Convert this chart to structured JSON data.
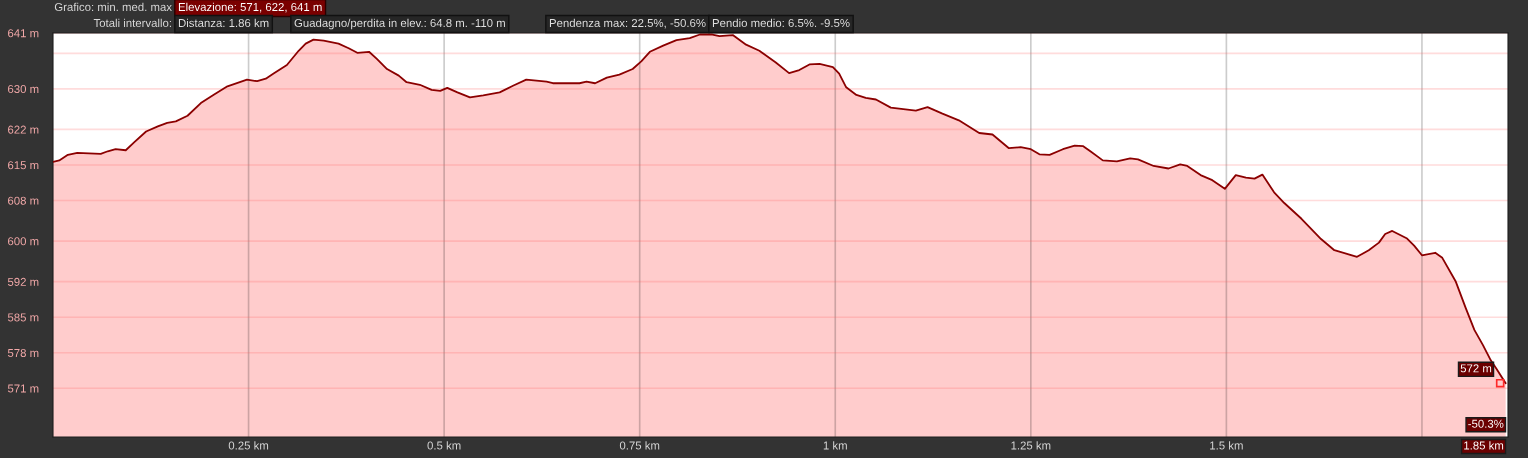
{
  "chart_data": {
    "type": "area",
    "annotations": [
      "Grafico: min. med. max",
      "Elevazione: 571, 622, 641 m",
      "Totali intervallo:",
      "Distanza: 1.86 km",
      "Guadagno/perdita in elev.: 64.8 m. -110 m",
      "Pendenza max: 22.5%, -50.6%",
      "Pendio medio: 6.5%. -9.5%",
      {
        "text": "572 m",
        "x": 1.85,
        "y": 572
      },
      "-50.3%",
      "1.85 km"
    ],
    "x": [
      0,
      0.008,
      0.019,
      0.031,
      0.061,
      0.07,
      0.08,
      0.093,
      0.104,
      0.119,
      0.134,
      0.146,
      0.157,
      0.172,
      0.189,
      0.206,
      0.223,
      0.248,
      0.261,
      0.272,
      0.282,
      0.299,
      0.314,
      0.323,
      0.333,
      0.346,
      0.365,
      0.378,
      0.389,
      0.404,
      0.414,
      0.427,
      0.442,
      0.452,
      0.469,
      0.484,
      0.495,
      0.504,
      0.517,
      0.533,
      0.55,
      0.571,
      0.588,
      0.605,
      0.631,
      0.639,
      0.673,
      0.682,
      0.693,
      0.708,
      0.724,
      0.741,
      0.752,
      0.763,
      0.78,
      0.797,
      0.814,
      0.827,
      0.843,
      0.852,
      0.869,
      0.886,
      0.903,
      0.924,
      0.941,
      0.954,
      0.967,
      0.98,
      0.997,
      1.005,
      1.014,
      1.027,
      1.039,
      1.052,
      1.071,
      1.103,
      1.118,
      1.137,
      1.158,
      1.184,
      1.201,
      1.222,
      1.237,
      1.25,
      1.261,
      1.274,
      1.291,
      1.306,
      1.317,
      1.327,
      1.342,
      1.36,
      1.377,
      1.387,
      1.407,
      1.426,
      1.441,
      1.45,
      1.467,
      1.482,
      1.498,
      1.512,
      1.525,
      1.536,
      1.546,
      1.561,
      1.574,
      1.596,
      1.621,
      1.638,
      1.667,
      1.682,
      1.695,
      1.703,
      1.712,
      1.731,
      1.74,
      1.75,
      1.767,
      1.776,
      1.793,
      1.806,
      1.817,
      1.828,
      1.838,
      1.845,
      1.857
    ],
    "series": [
      {
        "color": "#8b0000",
        "values": [
          615.6,
          615.9,
          617.0,
          617.4,
          617.2,
          617.7,
          618.1,
          617.9,
          619.5,
          621.6,
          622.6,
          623.3,
          623.6,
          624.7,
          627.2,
          628.9,
          630.5,
          631.8,
          631.5,
          632.0,
          633.0,
          634.7,
          637.5,
          638.9,
          639.7,
          639.5,
          638.9,
          638.0,
          637.1,
          637.3,
          635.9,
          633.9,
          632.6,
          631.3,
          630.8,
          629.8,
          629.6,
          630.2,
          629.3,
          628.3,
          628.7,
          629.3,
          630.6,
          631.8,
          631.4,
          631.1,
          631.1,
          631.4,
          631.1,
          632.2,
          632.8,
          633.9,
          635.4,
          637.3,
          638.5,
          639.6,
          640.0,
          640.7,
          640.7,
          640.4,
          640.6,
          638.7,
          637.5,
          635.2,
          633.1,
          633.7,
          634.8,
          634.9,
          634.3,
          633.0,
          630.3,
          628.8,
          628.2,
          627.9,
          626.3,
          625.7,
          626.4,
          625.1,
          623.8,
          621.3,
          621.0,
          618.3,
          618.5,
          618.1,
          617.1,
          617.0,
          618.1,
          618.8,
          618.7,
          617.6,
          615.9,
          615.7,
          616.3,
          616.1,
          614.8,
          614.3,
          615.1,
          614.8,
          613.0,
          612.0,
          610.3,
          613.0,
          612.5,
          612.3,
          613.1,
          609.6,
          607.5,
          604.4,
          600.4,
          598.2,
          596.9,
          598.2,
          599.7,
          601.4,
          602.0,
          600.5,
          599.1,
          597.2,
          597.7,
          596.7,
          592.1,
          586.8,
          582.5,
          579.5,
          576.5,
          574.9,
          572.0
        ]
      }
    ],
    "xlim": [
      0,
      1.86
    ],
    "ylim": [
      561.4,
      641
    ],
    "xticks": [
      {
        "value": 0.25,
        "label": "0.25 km"
      },
      {
        "value": 0.5,
        "label": "0.5 km"
      },
      {
        "value": 0.75,
        "label": "0.75 km"
      },
      {
        "value": 1,
        "label": "1 km"
      },
      {
        "value": 1.25,
        "label": "1.25 km"
      },
      {
        "value": 1.5,
        "label": "1.5 km"
      },
      {
        "value": 1.75,
        "label": null
      }
    ],
    "yticks": [
      {
        "value": 641,
        "label": "641 m"
      },
      {
        "value": 637,
        "label": null
      },
      {
        "value": 630,
        "label": "630 m"
      },
      {
        "value": 622,
        "label": "622 m"
      },
      {
        "value": 615,
        "label": "615 m"
      },
      {
        "value": 608,
        "label": "608 m"
      },
      {
        "value": 600,
        "label": "600 m"
      },
      {
        "value": 592,
        "label": "592 m"
      },
      {
        "value": 585,
        "label": "585 m"
      },
      {
        "value": 578,
        "label": "578 m"
      },
      {
        "value": 571,
        "label": "571 m"
      }
    ],
    "grid": true
  }
}
